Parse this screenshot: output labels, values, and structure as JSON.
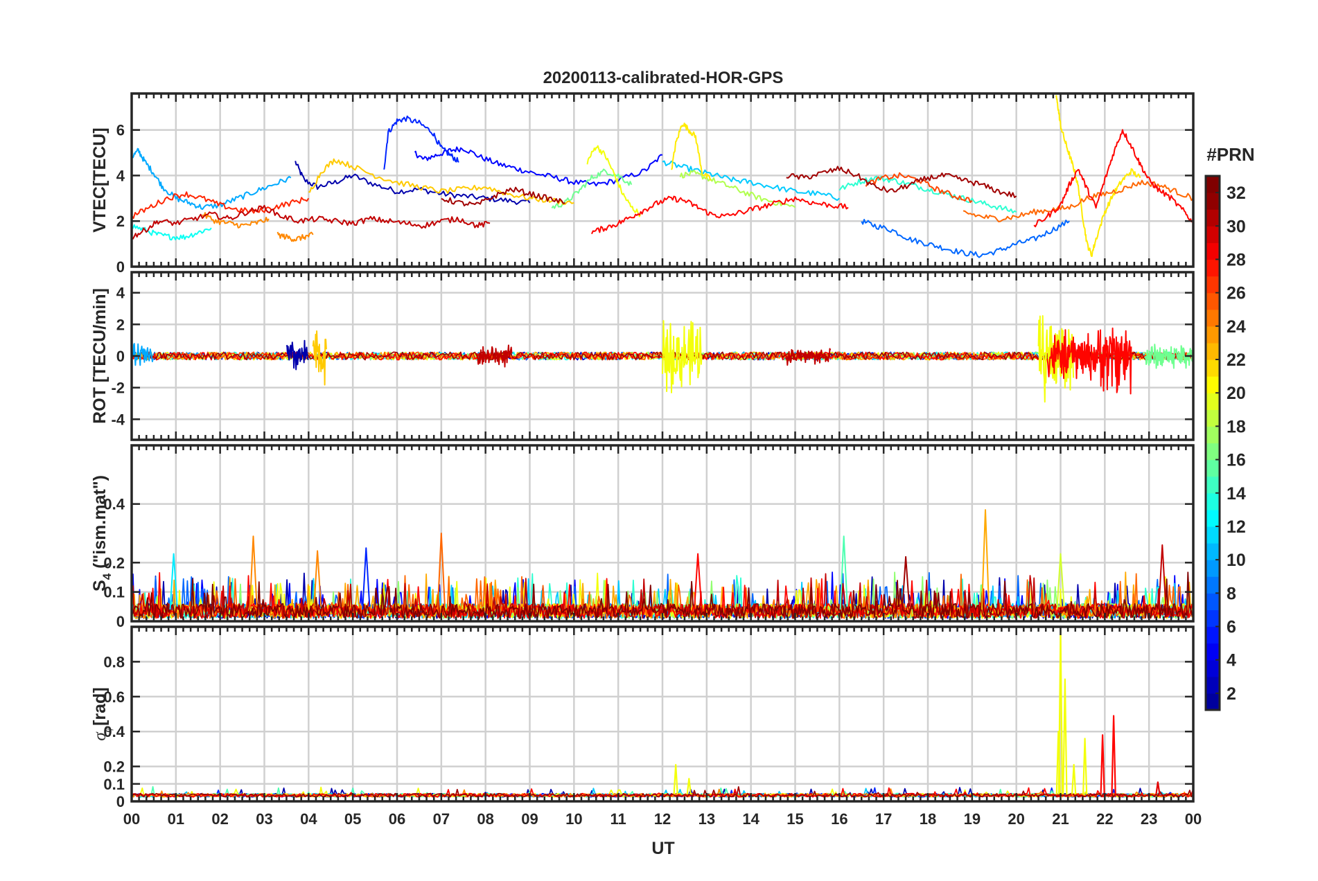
{
  "title": "20200113-calibrated-HOR-GPS",
  "colorbar": {
    "label": "#PRN",
    "ticks": [
      "2",
      "4",
      "6",
      "8",
      "10",
      "12",
      "14",
      "16",
      "18",
      "20",
      "22",
      "24",
      "26",
      "28",
      "30",
      "32"
    ],
    "range": [
      1,
      32
    ],
    "colormap": "jet",
    "colors": [
      "#00008f",
      "#0000ff",
      "#0080ff",
      "#00ffff",
      "#80ff80",
      "#ffff00",
      "#ff8000",
      "#ff0000",
      "#800000"
    ]
  },
  "chart_data": {
    "type": "line",
    "xlabel": "UT",
    "xlim": [
      0,
      24
    ],
    "xticklabels": [
      "00",
      "01",
      "02",
      "03",
      "04",
      "05",
      "06",
      "07",
      "08",
      "09",
      "10",
      "11",
      "12",
      "13",
      "14",
      "15",
      "16",
      "17",
      "18",
      "19",
      "20",
      "21",
      "22",
      "23",
      "00"
    ],
    "grid": true,
    "panels": [
      {
        "id": "vtec",
        "ylabel": "VTEC[TECU]",
        "ylim": [
          0,
          7.6
        ],
        "yticklabels": [
          "0",
          "2",
          "4",
          "6"
        ],
        "yticks": [
          0,
          2,
          4,
          6
        ],
        "series": [
          {
            "prn": 2,
            "x": [
              3.7,
              3.9,
              4.2,
              4.6,
              5.0,
              5.5,
              6.0,
              6.5,
              7.0,
              7.5,
              8.0,
              8.5,
              9.0
            ],
            "y": [
              4.6,
              3.8,
              3.5,
              3.7,
              4.0,
              3.6,
              3.3,
              3.4,
              3.2,
              3.1,
              3.0,
              2.9,
              2.8
            ]
          },
          {
            "prn": 5,
            "x": [
              6.4,
              6.6,
              6.9,
              7.2,
              7.5,
              7.9,
              8.3,
              8.7,
              9.1,
              9.6,
              10.0,
              10.5,
              11.0,
              11.6,
              12.0
            ],
            "y": [
              5.0,
              4.7,
              4.9,
              5.1,
              5.2,
              4.8,
              4.5,
              4.3,
              4.1,
              3.9,
              3.7,
              3.6,
              3.8,
              4.2,
              4.9
            ]
          },
          {
            "prn": 6,
            "x": [
              5.7,
              5.8,
              6.0,
              6.2,
              6.5,
              6.8,
              7.0,
              7.2,
              7.4
            ],
            "y": [
              4.2,
              5.9,
              6.4,
              6.5,
              6.3,
              5.9,
              5.2,
              4.9,
              4.6
            ]
          },
          {
            "prn": 8,
            "x": [
              16.5,
              16.8,
              17.2,
              17.6,
              18.0,
              18.4,
              18.8,
              19.2,
              19.6,
              20.0,
              20.4,
              20.8,
              21.2
            ],
            "y": [
              2.0,
              1.8,
              1.6,
              1.2,
              1.0,
              0.8,
              0.6,
              0.5,
              0.7,
              1.0,
              1.2,
              1.6,
              2.0
            ]
          },
          {
            "prn": 10,
            "x": [
              0.0,
              0.15,
              0.3,
              0.5,
              0.7,
              1.0,
              1.3,
              1.6,
              2.0,
              2.4,
              2.8,
              3.2,
              3.6
            ],
            "y": [
              4.8,
              5.1,
              4.6,
              4.1,
              3.5,
              3.0,
              2.8,
              2.6,
              2.7,
              3.0,
              3.3,
              3.6,
              3.9
            ]
          },
          {
            "prn": 11,
            "x": [
              12.0,
              12.4,
              12.8,
              13.2,
              13.6,
              14.0,
              14.5,
              15.0,
              15.5,
              16.0
            ],
            "y": [
              4.6,
              4.4,
              4.2,
              4.0,
              3.8,
              3.7,
              3.5,
              3.3,
              3.2,
              3.0
            ]
          },
          {
            "prn": 13,
            "x": [
              0.0,
              0.3,
              0.6,
              0.9,
              1.2,
              1.5,
              1.8
            ],
            "y": [
              1.8,
              1.6,
              1.4,
              1.3,
              1.3,
              1.5,
              1.7
            ]
          },
          {
            "prn": 14,
            "x": [
              16.0,
              16.4,
              16.8,
              17.2,
              17.6,
              18.0,
              18.4,
              18.8,
              19.2,
              19.6,
              20.0
            ],
            "y": [
              3.4,
              3.7,
              3.9,
              3.8,
              3.6,
              3.4,
              3.2,
              3.0,
              2.8,
              2.6,
              2.4
            ]
          },
          {
            "prn": 16,
            "x": [
              9.5,
              9.8,
              10.1,
              10.4,
              10.7,
              11.0,
              11.3
            ],
            "y": [
              2.6,
              2.8,
              3.3,
              3.9,
              4.2,
              4.0,
              3.6
            ]
          },
          {
            "prn": 18,
            "x": [
              12.4,
              12.7,
              13.0,
              13.4,
              13.8,
              14.2,
              14.6,
              15.0
            ],
            "y": [
              4.0,
              4.1,
              3.9,
              3.6,
              3.3,
              3.0,
              2.8,
              2.6
            ]
          },
          {
            "prn": 20,
            "x": [
              10.3,
              10.5,
              10.7,
              10.9,
              11.1,
              11.3,
              11.5
            ],
            "y": [
              4.6,
              5.3,
              4.9,
              4.1,
              3.2,
              2.6,
              2.3
            ]
          },
          {
            "prn": 21,
            "x": [
              12.2,
              12.3,
              12.45,
              12.6,
              12.75,
              12.9,
              13.1
            ],
            "y": [
              4.2,
              5.4,
              6.3,
              6.0,
              5.7,
              4.1,
              3.8
            ]
          },
          {
            "prn": 21,
            "x": [
              20.9,
              20.95,
              21.0,
              21.1,
              21.2,
              21.3,
              21.4,
              21.5,
              21.6,
              21.7,
              21.8,
              22.0,
              22.2,
              22.4,
              22.6,
              22.8
            ],
            "y": [
              7.5,
              6.9,
              6.2,
              5.5,
              4.9,
              4.3,
              3.5,
              2.2,
              1.0,
              0.5,
              1.2,
              2.4,
              3.2,
              3.8,
              4.2,
              3.9
            ]
          },
          {
            "prn": 22,
            "x": [
              4.0,
              4.3,
              4.6,
              5.0,
              5.5,
              6.0,
              6.5,
              7.0,
              7.5,
              8.0,
              8.5,
              9.0,
              9.5,
              10.0
            ],
            "y": [
              3.2,
              4.2,
              4.7,
              4.4,
              4.0,
              3.7,
              3.5,
              3.3,
              3.4,
              3.5,
              3.2,
              3.0,
              2.9,
              2.8
            ]
          },
          {
            "prn": 24,
            "x": [
              1.6,
              1.9,
              2.2,
              2.5,
              2.8,
              3.1
            ],
            "y": [
              2.3,
              2.0,
              1.9,
              1.8,
              1.9,
              2.1
            ]
          },
          {
            "prn": 24,
            "x": [
              3.3,
              3.5,
              3.7,
              3.9,
              4.1
            ],
            "y": [
              1.4,
              1.3,
              1.2,
              1.3,
              1.4
            ]
          },
          {
            "prn": 25,
            "x": [
              18.8,
              19.2,
              19.6,
              20.0,
              20.4,
              20.8,
              21.2,
              21.6,
              22.0,
              22.4,
              22.8,
              23.2,
              23.6,
              24.0
            ],
            "y": [
              2.4,
              2.2,
              2.1,
              2.2,
              2.4,
              2.5,
              2.6,
              3.0,
              3.2,
              3.4,
              3.7,
              3.6,
              3.3,
              3.0
            ]
          },
          {
            "prn": 26,
            "x": [
              16.6,
              17.0,
              17.4,
              17.8,
              18.2,
              18.6,
              19.0
            ],
            "y": [
              3.6,
              3.9,
              4.0,
              3.8,
              3.4,
              3.1,
              2.9
            ]
          },
          {
            "prn": 27,
            "x": [
              0.0,
              0.4,
              0.8,
              1.2,
              1.6,
              2.0,
              2.4,
              2.8,
              3.2,
              3.6,
              4.0
            ],
            "y": [
              2.2,
              2.6,
              3.0,
              3.2,
              3.0,
              2.7,
              2.5,
              2.4,
              2.6,
              2.8,
              3.0
            ]
          },
          {
            "prn": 28,
            "x": [
              10.4,
              10.7,
              11.0,
              11.3,
              11.6,
              11.9,
              12.2,
              12.5,
              12.8,
              13.1,
              13.4,
              13.8,
              14.2,
              14.6,
              15.0,
              15.4,
              15.8,
              16.2
            ],
            "y": [
              1.5,
              1.7,
              1.9,
              2.2,
              2.5,
              2.8,
              3.0,
              2.9,
              2.6,
              2.3,
              2.2,
              2.4,
              2.6,
              2.8,
              3.0,
              2.8,
              2.7,
              2.6
            ]
          },
          {
            "prn": 28,
            "x": [
              20.4,
              20.7,
              21.0,
              21.2,
              21.4,
              21.6,
              21.8,
              22.0,
              22.2,
              22.4,
              22.6,
              22.8,
              23.0,
              23.2,
              23.5,
              23.8,
              24.0
            ],
            "y": [
              1.8,
              2.2,
              2.7,
              3.6,
              4.3,
              3.4,
              2.6,
              3.8,
              5.0,
              6.0,
              5.3,
              4.5,
              3.8,
              3.4,
              3.0,
              2.4,
              1.9
            ]
          },
          {
            "prn": 30,
            "x": [
              0.0,
              0.3,
              0.6,
              1.0,
              1.4,
              1.8,
              2.2,
              2.6,
              3.0,
              3.4,
              3.8,
              4.2,
              4.6,
              5.0,
              5.4,
              5.8,
              6.2,
              6.6,
              7.0,
              7.4,
              7.8,
              8.1
            ],
            "y": [
              1.3,
              1.6,
              2.0,
              1.9,
              2.1,
              2.3,
              2.1,
              2.4,
              2.6,
              2.2,
              2.0,
              2.1,
              2.0,
              1.9,
              2.1,
              2.0,
              1.9,
              1.8,
              2.0,
              2.1,
              1.8,
              1.9
            ]
          },
          {
            "prn": 31,
            "x": [
              7.0,
              7.4,
              7.8,
              8.2,
              8.6,
              9.0,
              9.4,
              9.8
            ],
            "y": [
              3.0,
              2.8,
              2.7,
              3.1,
              3.4,
              3.2,
              3.0,
              2.8
            ]
          },
          {
            "prn": 31,
            "x": [
              14.8,
              15.2,
              15.6,
              16.0,
              16.4,
              16.8,
              17.2,
              17.6,
              18.0,
              18.4,
              18.8,
              19.2,
              19.6,
              20.0
            ],
            "y": [
              4.0,
              3.9,
              4.1,
              4.3,
              4.0,
              3.5,
              3.3,
              3.6,
              3.9,
              4.0,
              3.8,
              3.6,
              3.3,
              3.1
            ]
          }
        ]
      },
      {
        "id": "rot",
        "ylabel": "ROT [TECU/min]",
        "ylim": [
          -5.3,
          5.3
        ],
        "yticklabels": [
          "-4",
          "-2",
          "0",
          "2",
          "4"
        ],
        "yticks": [
          -4,
          -2,
          0,
          2,
          4
        ],
        "bursts": [
          {
            "prn": 10,
            "x": [
              0.0,
              0.5
            ],
            "amp": 1.0
          },
          {
            "prn": 2,
            "x": [
              3.5,
              4.0
            ],
            "amp": 1.2
          },
          {
            "prn": 22,
            "x": [
              4.1,
              4.4
            ],
            "amp": 2.0
          },
          {
            "prn": 30,
            "x": [
              7.8,
              8.6
            ],
            "amp": 0.8
          },
          {
            "prn": 20,
            "x": [
              12.0,
              12.9
            ],
            "amp": 2.6
          },
          {
            "prn": 30,
            "x": [
              14.8,
              15.8
            ],
            "amp": 0.6
          },
          {
            "prn": 20,
            "x": [
              20.5,
              21.3
            ],
            "amp": 3.2
          },
          {
            "prn": 28,
            "x": [
              20.7,
              21.9
            ],
            "amp": 1.8
          },
          {
            "prn": 28,
            "x": [
              21.9,
              22.6
            ],
            "amp": 2.8
          },
          {
            "prn": 16,
            "x": [
              22.9,
              24.0
            ],
            "amp": 1.0
          }
        ],
        "baseline_amp": 0.25
      },
      {
        "id": "s4",
        "ylabel": "S4 (\"ism.mat\")",
        "ylabel_main": "S",
        "ylabel_sub": "4",
        "ylabel_rest": " (\"ism.mat\")",
        "ylim": [
          0,
          0.6
        ],
        "yticklabels": [
          "0",
          "0.1",
          "0.2",
          "0.4"
        ],
        "yticks": [
          0,
          0.1,
          0.2,
          0.4
        ],
        "peaks": [
          {
            "x": 0.95,
            "y": 0.23,
            "prn": 12
          },
          {
            "x": 2.75,
            "y": 0.29,
            "prn": 24
          },
          {
            "x": 4.2,
            "y": 0.24,
            "prn": 24
          },
          {
            "x": 5.3,
            "y": 0.25,
            "prn": 6
          },
          {
            "x": 7.0,
            "y": 0.3,
            "prn": 25
          },
          {
            "x": 12.8,
            "y": 0.23,
            "prn": 28
          },
          {
            "x": 16.1,
            "y": 0.29,
            "prn": 15
          },
          {
            "x": 17.5,
            "y": 0.22,
            "prn": 31
          },
          {
            "x": 19.3,
            "y": 0.38,
            "prn": 23
          },
          {
            "x": 21.0,
            "y": 0.23,
            "prn": 19
          },
          {
            "x": 23.3,
            "y": 0.26,
            "prn": 30
          }
        ]
      },
      {
        "id": "sigma_phi",
        "ylabel": "σφ[rad]",
        "ylabel_main": "σ",
        "ylabel_sub": "φ",
        "ylabel_rest": "[rad]",
        "ylim": [
          0,
          1.0
        ],
        "yticklabels": [
          "0",
          "0.1",
          "0.2",
          "0.4",
          "0.6",
          "0.8"
        ],
        "yticks": [
          0,
          0.1,
          0.2,
          0.4,
          0.6,
          0.8
        ],
        "peaks": [
          {
            "x": 12.3,
            "y": 0.21,
            "prn": 20
          },
          {
            "x": 12.6,
            "y": 0.13,
            "prn": 20
          },
          {
            "x": 20.95,
            "y": 0.4,
            "prn": 20
          },
          {
            "x": 21.0,
            "y": 0.98,
            "prn": 20
          },
          {
            "x": 21.1,
            "y": 0.7,
            "prn": 20
          },
          {
            "x": 21.3,
            "y": 0.21,
            "prn": 20
          },
          {
            "x": 21.55,
            "y": 0.36,
            "prn": 20
          },
          {
            "x": 21.95,
            "y": 0.38,
            "prn": 28
          },
          {
            "x": 22.2,
            "y": 0.49,
            "prn": 28
          },
          {
            "x": 23.2,
            "y": 0.11,
            "prn": 29
          }
        ]
      }
    ]
  }
}
